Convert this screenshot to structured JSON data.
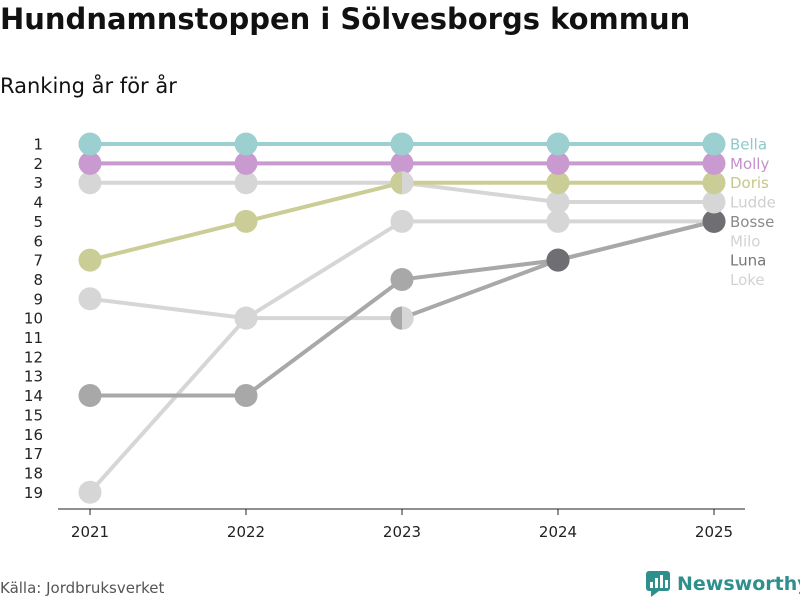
{
  "title": "Hundnamnstoppen i Sölvesborgs kommun",
  "subtitle": "Ranking år för år",
  "source": "Källa: Jordbruksverket",
  "brand": "Newsworthy",
  "chart_data": {
    "type": "line",
    "x": [
      "2021",
      "2022",
      "2023",
      "2024",
      "2025"
    ],
    "yticks": [
      1,
      2,
      3,
      4,
      5,
      6,
      7,
      8,
      9,
      10,
      11,
      12,
      13,
      14,
      15,
      16,
      17,
      18,
      19
    ],
    "ylim": [
      1,
      19
    ],
    "ydirection": "inverted",
    "series": [
      {
        "name": "Bella",
        "values": [
          1,
          1,
          1,
          1,
          1
        ],
        "color": "#9ccfcf",
        "label_color": "#8ccaca"
      },
      {
        "name": "Molly",
        "values": [
          2,
          2,
          2,
          2,
          2
        ],
        "color": "#c99ad0",
        "label_color": "#c490cc"
      },
      {
        "name": "Doris",
        "values": [
          7,
          5,
          3,
          3,
          3
        ],
        "color": "#cbcd96",
        "label_color": "#c5c78a"
      },
      {
        "name": "Ludde",
        "values": [
          3,
          3,
          3,
          4,
          4
        ],
        "color": "#d6d6d6",
        "label_color": "#cfcfcf"
      },
      {
        "name": "Bosse",
        "values": [
          14,
          14,
          8,
          7,
          5
        ],
        "color": "#a8a8a8",
        "marker_colors": [
          "#a8a8a8",
          "#a8a8a8",
          "#a8a8a8",
          "#6f6f73",
          "#6f6f73"
        ],
        "label_color": "#8a8a8a"
      },
      {
        "name": "Milo",
        "values": [
          19,
          10,
          5,
          5,
          5
        ],
        "color": "#d6d6d6",
        "label_color": "#d2d2d2"
      },
      {
        "name": "Luna",
        "values": [
          null,
          null,
          10,
          7,
          5
        ],
        "color": "#a8a8a8",
        "marker_colors": [
          null,
          null,
          "#a8a8a8",
          "#6f6f73",
          "#6f6f73"
        ],
        "label_color": "#777777"
      },
      {
        "name": "Loke",
        "values": [
          9,
          10,
          10,
          null,
          null
        ],
        "color": "#d6d6d6",
        "label_color": "#d2d2d2"
      }
    ]
  }
}
